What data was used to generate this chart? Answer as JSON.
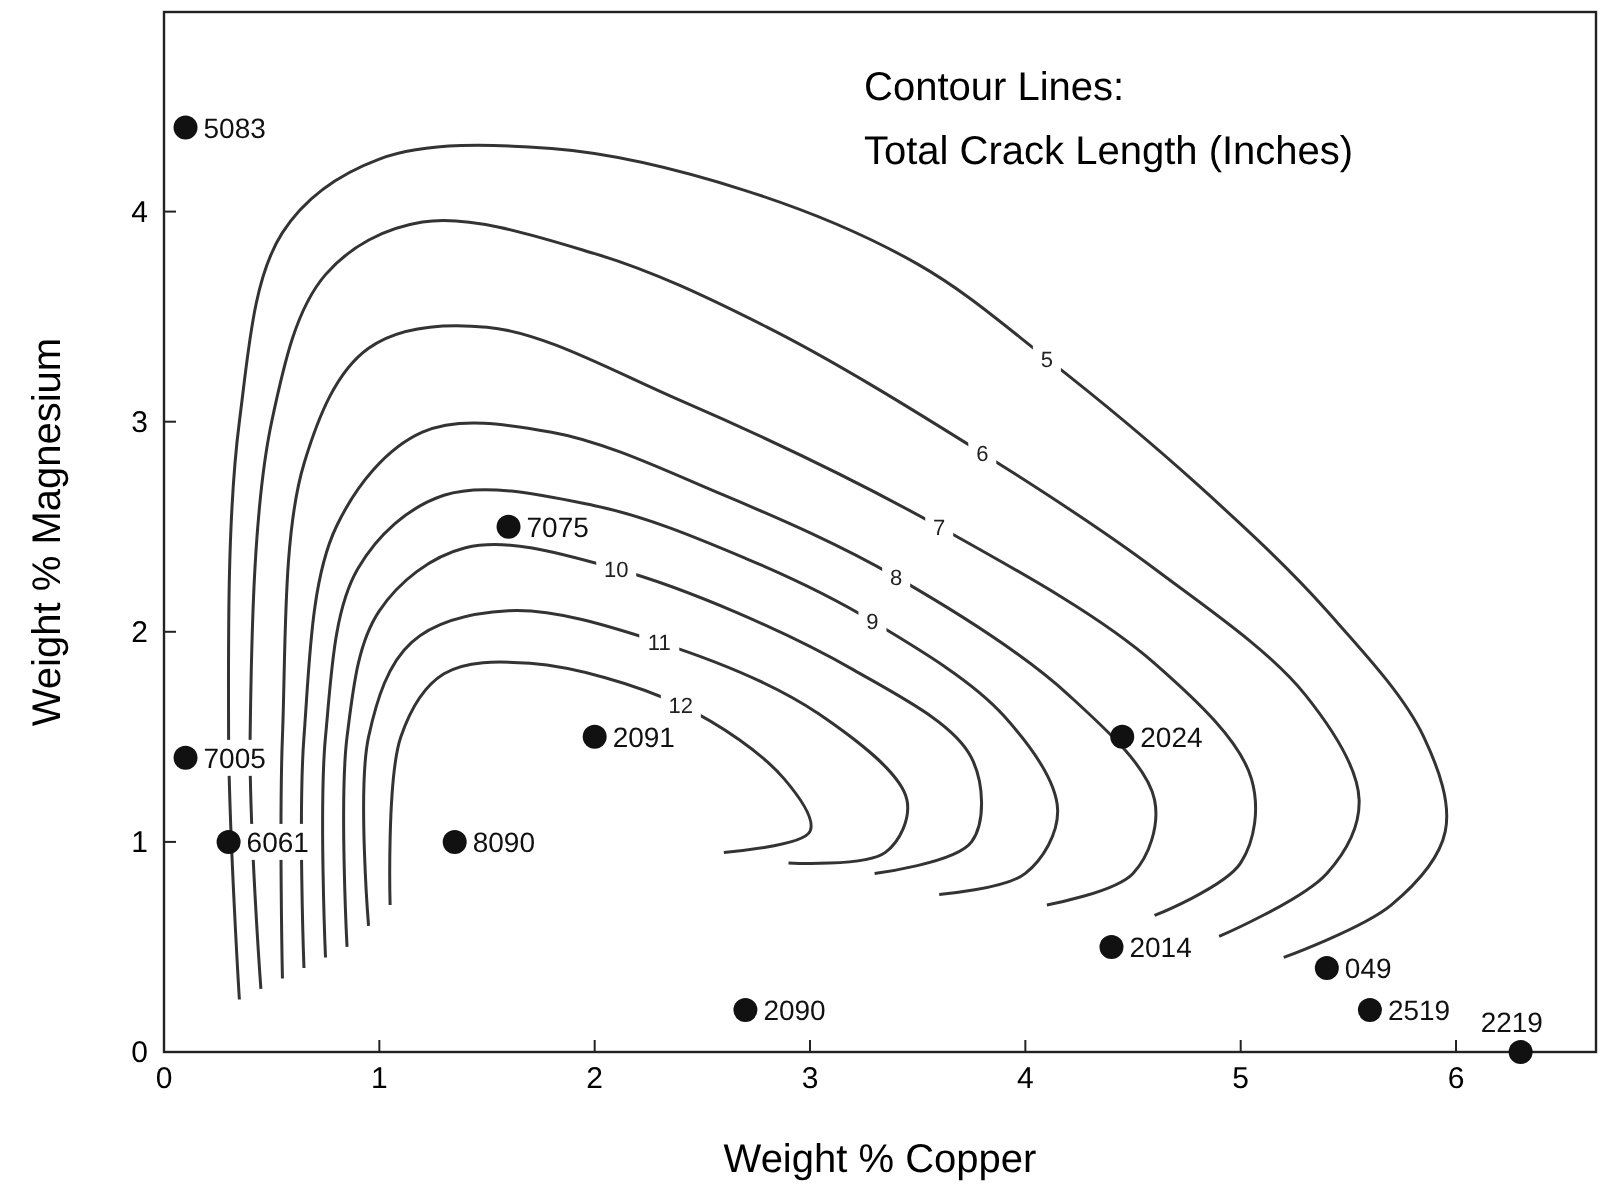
{
  "chart_data": {
    "type": "scatter",
    "title": "Contour Lines:",
    "subtitle": "Total Crack Length (Inches)",
    "xlabel": "Weight % Copper",
    "ylabel": "Weight % Magnesium",
    "xlim": [
      0,
      6.65
    ],
    "ylim": [
      0,
      4.95
    ],
    "xticks": [
      0,
      1,
      2,
      3,
      4,
      5,
      6
    ],
    "yticks": [
      0,
      1,
      2,
      3,
      4
    ],
    "grid": false,
    "series": [
      {
        "marker": "circle",
        "color": "#111111",
        "x": [
          0.1,
          0.1,
          0.3,
          1.35,
          1.6,
          2.0,
          4.45,
          4.4,
          2.7,
          5.4,
          5.6,
          6.3
        ],
        "values": [
          4.4,
          1.4,
          1.0,
          1.0,
          2.5,
          1.5,
          1.5,
          0.5,
          0.2,
          0.4,
          0.2,
          0.0
        ]
      },
      {
        "type": "line",
        "name": "5",
        "color": "#333333",
        "x": [
          0.35,
          0.3,
          0.35,
          0.55,
          1.0,
          1.8,
          2.7,
          3.5,
          4.1,
          4.8,
          5.4,
          5.85,
          5.95,
          5.7,
          5.2
        ],
        "values": [
          0.25,
          1.5,
          3.0,
          3.9,
          4.25,
          4.3,
          4.1,
          3.75,
          3.3,
          2.7,
          2.1,
          1.5,
          1.05,
          0.7,
          0.45
        ]
      },
      {
        "type": "line",
        "name": "6",
        "color": "#333333",
        "x": [
          0.45,
          0.4,
          0.5,
          0.75,
          1.2,
          2.0,
          2.8,
          3.8,
          4.6,
          5.3,
          5.55,
          5.4,
          4.9
        ],
        "values": [
          0.3,
          1.5,
          3.0,
          3.7,
          3.95,
          3.8,
          3.45,
          2.85,
          2.3,
          1.7,
          1.2,
          0.85,
          0.55
        ]
      },
      {
        "type": "line",
        "name": "7",
        "color": "#333333",
        "x": [
          0.55,
          0.55,
          0.65,
          0.95,
          1.5,
          2.4,
          3.6,
          4.6,
          5.05,
          5.0,
          4.6
        ],
        "values": [
          0.35,
          1.5,
          2.8,
          3.35,
          3.45,
          3.1,
          2.5,
          1.85,
          1.3,
          0.9,
          0.65
        ]
      },
      {
        "type": "line",
        "name": "8",
        "color": "#333333",
        "x": [
          0.65,
          0.65,
          0.8,
          1.2,
          1.8,
          2.6,
          3.4,
          4.2,
          4.6,
          4.5,
          4.1
        ],
        "values": [
          0.4,
          1.5,
          2.5,
          2.95,
          2.95,
          2.65,
          2.26,
          1.7,
          1.2,
          0.85,
          0.7
        ]
      },
      {
        "type": "line",
        "name": "9",
        "color": "#333333",
        "x": [
          0.75,
          0.75,
          0.9,
          1.3,
          2.0,
          2.7,
          3.29,
          3.9,
          4.15,
          4.0,
          3.6
        ],
        "values": [
          0.45,
          1.5,
          2.3,
          2.65,
          2.6,
          2.35,
          2.05,
          1.6,
          1.15,
          0.85,
          0.75
        ]
      },
      {
        "type": "line",
        "name": "10",
        "color": "#333333",
        "x": [
          0.85,
          0.85,
          1.0,
          1.4,
          2.1,
          3.2,
          3.75,
          3.75,
          3.3
        ],
        "values": [
          0.5,
          1.5,
          2.1,
          2.4,
          2.3,
          1.82,
          1.4,
          1.0,
          0.85
        ]
      },
      {
        "type": "line",
        "name": "11",
        "color": "#333333",
        "x": [
          0.95,
          0.95,
          1.15,
          1.6,
          2.3,
          3.04,
          3.45,
          3.35,
          2.9
        ],
        "values": [
          0.6,
          1.5,
          1.95,
          2.1,
          1.95,
          1.61,
          1.2,
          0.95,
          0.9
        ]
      },
      {
        "type": "line",
        "name": "12",
        "color": "#333333",
        "x": [
          1.05,
          1.1,
          1.3,
          1.7,
          2.4,
          2.88,
          3.0,
          2.6
        ],
        "values": [
          0.7,
          1.5,
          1.8,
          1.85,
          1.65,
          1.3,
          1.05,
          0.95
        ]
      }
    ],
    "annotations": [
      {
        "text": "5083",
        "x": 0.1,
        "y": 4.4
      },
      {
        "text": "7005",
        "x": 0.1,
        "y": 1.4
      },
      {
        "text": "6061",
        "x": 0.3,
        "y": 1.0
      },
      {
        "text": "8090",
        "x": 1.35,
        "y": 1.0
      },
      {
        "text": "7075",
        "x": 1.6,
        "y": 2.5
      },
      {
        "text": "2091",
        "x": 2.0,
        "y": 1.5
      },
      {
        "text": "2024",
        "x": 4.45,
        "y": 1.5
      },
      {
        "text": "2014",
        "x": 4.4,
        "y": 0.5
      },
      {
        "text": "2090",
        "x": 2.7,
        "y": 0.2
      },
      {
        "text": "049",
        "x": 5.4,
        "y": 0.4
      },
      {
        "text": "2519",
        "x": 5.6,
        "y": 0.2
      },
      {
        "text": "2219",
        "x": 6.3,
        "y": 0.0
      }
    ]
  }
}
